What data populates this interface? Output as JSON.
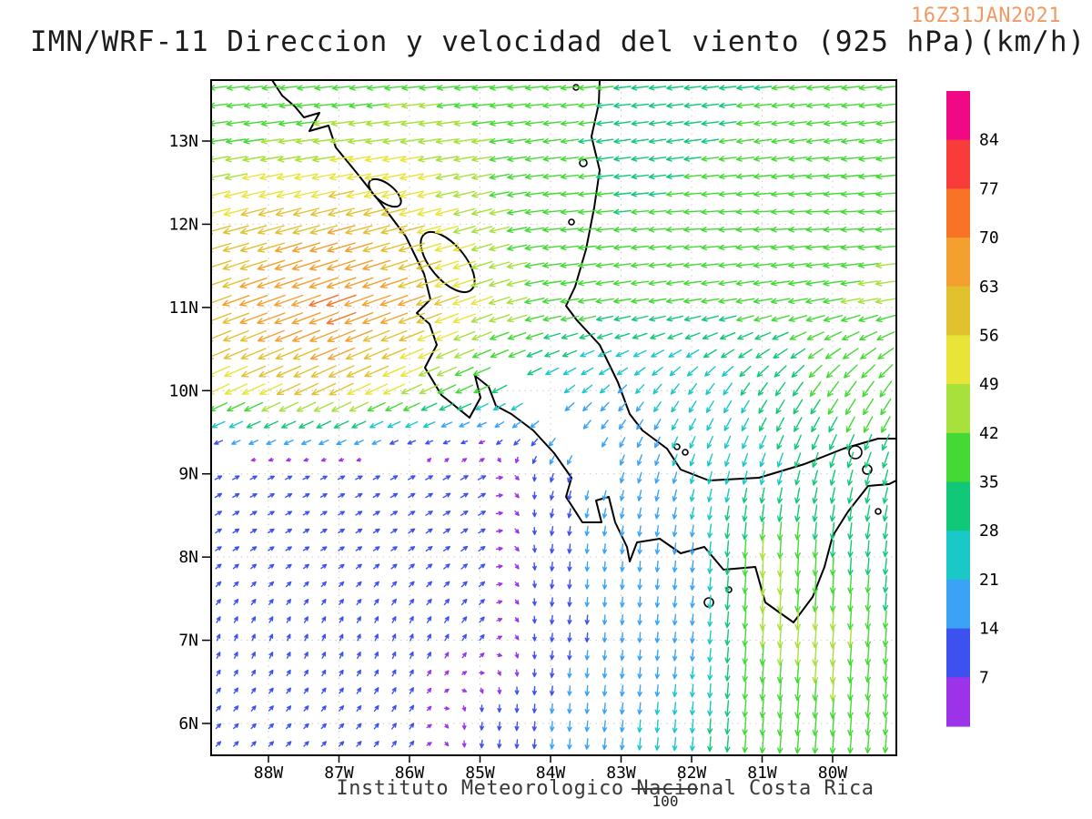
{
  "header": {
    "title": "IMN/WRF-11 Direccion y velocidad del viento (925 hPa)(km/h)",
    "timestamp": "16Z31JAN2021"
  },
  "footer": {
    "institute": "Instituto Meteorologico Nacional Costa Rica",
    "reference_value": "100"
  },
  "axes": {
    "lat_labels": [
      "13N",
      "12N",
      "11N",
      "10N",
      "9N",
      "8N",
      "7N",
      "6N"
    ],
    "lon_labels": [
      "88W",
      "87W",
      "86W",
      "85W",
      "84W",
      "83W",
      "82W",
      "81W",
      "80W"
    ]
  },
  "colorbar": {
    "labels": [
      "84",
      "77",
      "70",
      "63",
      "56",
      "49",
      "42",
      "35",
      "28",
      "21",
      "14",
      "7"
    ],
    "colors_top_to_bottom": [
      "#f00884",
      "#f83c3a",
      "#f87325",
      "#f3a02e",
      "#e2c12f",
      "#e8e438",
      "#a8e03c",
      "#44d935",
      "#10c878",
      "#1ac8c8",
      "#3aa3f5",
      "#3c51ee",
      "#9c33e8"
    ]
  },
  "colors": {
    "timestamp": "#f29a64",
    "coastline": "#000000",
    "frame": "#000000",
    "gridline": "#c9c9c9",
    "axis_text": "#000000"
  },
  "chart_data": {
    "type": "vector-field-map",
    "model": "IMN/WRF-11",
    "variable": "Direccion y velocidad del viento",
    "level": "925 hPa",
    "units": "km/h",
    "valid_time": "16Z31JAN2021",
    "lat_range_n": [
      5.6,
      13.75
    ],
    "lon_range_w": [
      79.1,
      88.8
    ],
    "speed_scale_kmh": [
      7,
      14,
      21,
      28,
      35,
      42,
      49,
      56,
      63,
      70,
      77,
      84
    ],
    "wind_grid": {
      "lats": [
        14,
        13,
        12,
        11,
        10,
        9,
        8,
        7,
        6
      ],
      "lons_w": [
        89,
        88,
        87,
        86,
        85,
        84,
        83,
        82,
        81,
        80,
        79
      ],
      "uv_kmh": [
        [
          [
            -35,
            -3
          ],
          [
            -35,
            -3
          ],
          [
            -33,
            -3
          ],
          [
            -36,
            -3
          ],
          [
            -40,
            -3
          ],
          [
            -38,
            -3
          ],
          [
            -35,
            -3
          ],
          [
            -33,
            -3
          ],
          [
            -34,
            -3
          ],
          [
            -36,
            -3
          ],
          [
            -38,
            -3
          ]
        ],
        [
          [
            -40,
            -6
          ],
          [
            -42,
            -6
          ],
          [
            -45,
            -6
          ],
          [
            -47,
            -7
          ],
          [
            -42,
            -6
          ],
          [
            -36,
            -5
          ],
          [
            -33,
            -5
          ],
          [
            -34,
            -5
          ],
          [
            -36,
            -5
          ],
          [
            -38,
            -5
          ],
          [
            -40,
            -5
          ]
        ],
        [
          [
            -53,
            -14
          ],
          [
            -58,
            -16
          ],
          [
            -61,
            -16
          ],
          [
            -56,
            -15
          ],
          [
            -43,
            -12
          ],
          [
            -38,
            -3
          ],
          [
            -35,
            -3
          ],
          [
            -36,
            -2
          ],
          [
            -38,
            -2
          ],
          [
            -40,
            -2
          ],
          [
            -42,
            -2
          ]
        ],
        [
          [
            -56,
            -21
          ],
          [
            -64,
            -23
          ],
          [
            -68,
            -25
          ],
          [
            -61,
            -22
          ],
          [
            -47,
            -17
          ],
          [
            -39,
            -7
          ],
          [
            -35,
            -6
          ],
          [
            -35,
            -6
          ],
          [
            -38,
            -7
          ],
          [
            -41,
            -8
          ],
          [
            -43,
            -8
          ]
        ],
        [
          [
            -45,
            -21
          ],
          [
            -50,
            -23
          ],
          [
            -53,
            -25
          ],
          [
            -43,
            -20
          ],
          [
            -32,
            -15
          ],
          [
            -20,
            -14
          ],
          [
            -14,
            -14
          ],
          [
            -14,
            -20
          ],
          [
            -17,
            -25
          ],
          [
            -22,
            -31
          ],
          [
            -24,
            -34
          ]
        ],
        [
          [
            9,
            5
          ],
          [
            8,
            4
          ],
          [
            8,
            4
          ],
          [
            9,
            5
          ],
          [
            11,
            6
          ],
          [
            -4,
            -12
          ],
          [
            -5,
            -17
          ],
          [
            -6,
            -21
          ],
          [
            -7,
            -25
          ],
          [
            -8,
            -29
          ],
          [
            -8,
            -31
          ]
        ],
        [
          [
            7,
            5
          ],
          [
            6,
            4
          ],
          [
            6,
            4
          ],
          [
            7,
            5
          ],
          [
            8,
            6
          ],
          [
            -1,
            -13
          ],
          [
            -1,
            -16
          ],
          [
            -2,
            -20
          ],
          [
            -2,
            -45
          ],
          [
            -2,
            -35
          ],
          [
            -3,
            -30
          ]
        ],
        [
          [
            3,
            7
          ],
          [
            3,
            7
          ],
          [
            3,
            7
          ],
          [
            3,
            8
          ],
          [
            5,
            7
          ],
          [
            -1,
            -12
          ],
          [
            -1,
            -15
          ],
          [
            -2,
            -18
          ],
          [
            -3,
            -42
          ],
          [
            -3,
            -45
          ],
          [
            -3,
            -35
          ]
        ],
        [
          [
            5,
            5
          ],
          [
            5,
            5
          ],
          [
            5,
            5
          ],
          [
            5,
            7
          ],
          [
            -1,
            -10
          ],
          [
            -1,
            -15
          ],
          [
            -2,
            -20
          ],
          [
            -2,
            -25
          ],
          [
            -3,
            -38
          ],
          [
            -3,
            -40
          ],
          [
            -3,
            -35
          ]
        ]
      ]
    }
  }
}
